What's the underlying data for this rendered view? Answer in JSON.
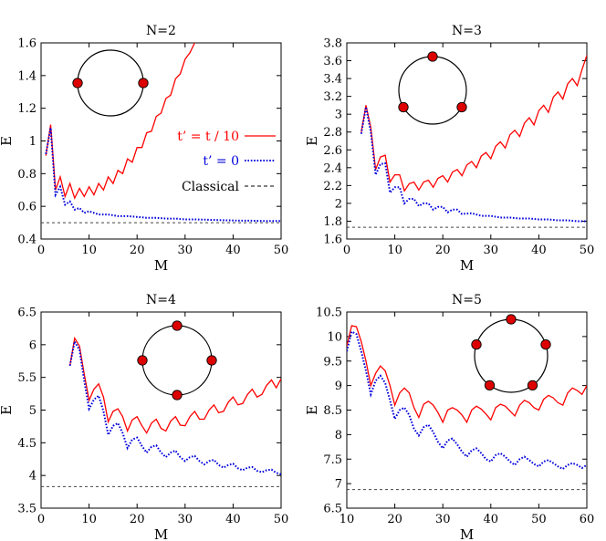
{
  "colors": {
    "hop": "#ff0000",
    "zero": "#0000dd",
    "classical": "#444444",
    "dot": "#dd0000"
  },
  "legend": {
    "entries": [
      {
        "label": "t’ = t / 10",
        "color": "#ff0000",
        "style": "solid"
      },
      {
        "label": "t’ = 0",
        "color": "#0000dd",
        "style": "dotted"
      },
      {
        "label": "Classical",
        "color": "#000000",
        "style": "dashed"
      }
    ]
  },
  "chart_data": [
    {
      "type": "line",
      "title": "N=2",
      "xlabel": "M",
      "ylabel": "E",
      "xlim": [
        0,
        50
      ],
      "ylim": [
        0.4,
        1.6
      ],
      "xticks": [
        "0",
        "10",
        "20",
        "30",
        "40",
        "50"
      ],
      "yticks": [
        "0.4",
        "0.6",
        "0.8",
        "1",
        "1.2",
        "1.4",
        "1.6"
      ],
      "xtick_values": [
        0,
        10,
        20,
        30,
        40,
        50
      ],
      "ytick_values": [
        0.4,
        0.6,
        0.8,
        1.0,
        1.2,
        1.4,
        1.6
      ],
      "n_particles": 2,
      "series": [
        {
          "key": "hop",
          "x": [
            1,
            2,
            3,
            4,
            5,
            6,
            7,
            8,
            9,
            10,
            11,
            12,
            13,
            14,
            15,
            16,
            17,
            18,
            19,
            20,
            21,
            22,
            23,
            24,
            25,
            26,
            27,
            28,
            29,
            30,
            31,
            32
          ],
          "y": [
            0.91,
            1.1,
            0.7,
            0.78,
            0.66,
            0.74,
            0.65,
            0.71,
            0.66,
            0.72,
            0.67,
            0.74,
            0.7,
            0.78,
            0.74,
            0.82,
            0.8,
            0.89,
            0.87,
            0.96,
            0.96,
            1.05,
            1.06,
            1.15,
            1.17,
            1.26,
            1.28,
            1.38,
            1.41,
            1.5,
            1.54,
            1.6
          ]
        },
        {
          "key": "zero",
          "x": [
            1,
            2,
            3,
            4,
            5,
            6,
            7,
            8,
            9,
            10,
            12,
            14,
            16,
            18,
            20,
            22,
            24,
            26,
            28,
            30,
            32,
            35,
            38,
            41,
            44,
            47,
            50
          ],
          "y": [
            0.92,
            1.08,
            0.67,
            0.72,
            0.61,
            0.63,
            0.58,
            0.59,
            0.56,
            0.57,
            0.55,
            0.55,
            0.54,
            0.54,
            0.535,
            0.53,
            0.53,
            0.525,
            0.525,
            0.52,
            0.52,
            0.518,
            0.515,
            0.513,
            0.512,
            0.51,
            0.51
          ]
        },
        {
          "key": "classical",
          "x": [
            0,
            50
          ],
          "y": [
            0.5,
            0.5
          ]
        }
      ]
    },
    {
      "type": "line",
      "title": "N=3",
      "xlabel": "M",
      "ylabel": "E",
      "xlim": [
        0,
        50
      ],
      "ylim": [
        1.6,
        3.8
      ],
      "xticks": [
        "0",
        "10",
        "20",
        "30",
        "40",
        "50"
      ],
      "yticks": [
        "1.6",
        "1.8",
        "2",
        "2.2",
        "2.4",
        "2.6",
        "2.8",
        "3",
        "3.2",
        "3.4",
        "3.6",
        "3.8"
      ],
      "xtick_values": [
        0,
        10,
        20,
        30,
        40,
        50
      ],
      "ytick_values": [
        1.6,
        1.8,
        2.0,
        2.2,
        2.4,
        2.6,
        2.8,
        3.0,
        3.2,
        3.4,
        3.6,
        3.8
      ],
      "n_particles": 3,
      "series": [
        {
          "key": "hop",
          "x": [
            3,
            4,
            5,
            6,
            7,
            8,
            9,
            10,
            11,
            12,
            13,
            14,
            15,
            16,
            17,
            18,
            19,
            20,
            21,
            22,
            23,
            24,
            25,
            26,
            27,
            28,
            29,
            30,
            31,
            32,
            33,
            34,
            35,
            36,
            37,
            38,
            39,
            40,
            41,
            42,
            43,
            44,
            45,
            46,
            47,
            48,
            49,
            50
          ],
          "y": [
            2.8,
            3.1,
            2.85,
            2.38,
            2.52,
            2.54,
            2.24,
            2.32,
            2.32,
            2.14,
            2.22,
            2.24,
            2.15,
            2.24,
            2.26,
            2.18,
            2.28,
            2.31,
            2.24,
            2.35,
            2.38,
            2.31,
            2.43,
            2.47,
            2.4,
            2.53,
            2.57,
            2.5,
            2.64,
            2.69,
            2.62,
            2.77,
            2.82,
            2.75,
            2.9,
            2.96,
            2.88,
            3.04,
            3.1,
            3.02,
            3.19,
            3.25,
            3.17,
            3.34,
            3.4,
            3.32,
            3.5,
            3.66
          ]
        },
        {
          "key": "zero",
          "x": [
            3,
            4,
            5,
            6,
            7,
            8,
            9,
            10,
            11,
            12,
            13,
            14,
            15,
            16,
            17,
            18,
            19,
            20,
            21,
            22,
            23,
            24,
            26,
            28,
            30,
            32,
            34,
            36,
            38,
            40,
            42,
            44,
            46,
            48,
            50
          ],
          "y": [
            2.78,
            3.08,
            2.8,
            2.32,
            2.44,
            2.45,
            2.12,
            2.18,
            2.18,
            2.0,
            2.05,
            2.05,
            1.97,
            2.0,
            2.0,
            1.93,
            1.96,
            1.96,
            1.9,
            1.93,
            1.93,
            1.88,
            1.89,
            1.86,
            1.86,
            1.84,
            1.84,
            1.83,
            1.83,
            1.82,
            1.82,
            1.81,
            1.81,
            1.8,
            1.8
          ]
        },
        {
          "key": "classical",
          "x": [
            0,
            50
          ],
          "y": [
            1.732,
            1.732
          ]
        }
      ]
    },
    {
      "type": "line",
      "title": "N=4",
      "xlabel": "M",
      "ylabel": "E",
      "xlim": [
        0,
        50
      ],
      "ylim": [
        3.5,
        6.5
      ],
      "xticks": [
        "0",
        "10",
        "20",
        "30",
        "40",
        "50"
      ],
      "yticks": [
        "3.5",
        "4",
        "4.5",
        "5",
        "5.5",
        "6",
        "6.5"
      ],
      "xtick_values": [
        0,
        10,
        20,
        30,
        40,
        50
      ],
      "ytick_values": [
        3.5,
        4.0,
        4.5,
        5.0,
        5.5,
        6.0,
        6.5
      ],
      "n_particles": 4,
      "series": [
        {
          "key": "hop",
          "x": [
            6,
            7,
            8,
            9,
            10,
            11,
            12,
            13,
            14,
            15,
            16,
            17,
            18,
            19,
            20,
            21,
            22,
            23,
            24,
            25,
            26,
            27,
            28,
            29,
            30,
            31,
            32,
            33,
            34,
            35,
            36,
            37,
            38,
            39,
            40,
            41,
            42,
            43,
            44,
            45,
            46,
            47,
            48,
            49,
            50
          ],
          "y": [
            5.68,
            6.1,
            5.98,
            5.55,
            5.15,
            5.32,
            5.4,
            5.2,
            4.82,
            4.98,
            5.02,
            4.9,
            4.68,
            4.85,
            4.9,
            4.76,
            4.65,
            4.8,
            4.86,
            4.72,
            4.68,
            4.83,
            4.9,
            4.77,
            4.76,
            4.9,
            4.98,
            4.86,
            4.86,
            5.0,
            5.08,
            4.96,
            4.98,
            5.12,
            5.2,
            5.08,
            5.1,
            5.24,
            5.32,
            5.2,
            5.24,
            5.38,
            5.46,
            5.34,
            5.48
          ]
        },
        {
          "key": "zero",
          "x": [
            6,
            7,
            8,
            9,
            10,
            11,
            12,
            13,
            14,
            15,
            16,
            17,
            18,
            19,
            20,
            21,
            22,
            23,
            24,
            25,
            26,
            27,
            28,
            29,
            30,
            31,
            32,
            33,
            34,
            35,
            36,
            37,
            38,
            39,
            40,
            41,
            42,
            43,
            44,
            45,
            46,
            47,
            48,
            49,
            50
          ],
          "y": [
            5.68,
            6.05,
            5.92,
            5.45,
            5.02,
            5.16,
            5.22,
            4.98,
            4.62,
            4.76,
            4.8,
            4.65,
            4.42,
            4.55,
            4.58,
            4.45,
            4.35,
            4.44,
            4.46,
            4.35,
            4.28,
            4.35,
            4.38,
            4.28,
            4.22,
            4.28,
            4.3,
            4.22,
            4.17,
            4.22,
            4.24,
            4.16,
            4.12,
            4.16,
            4.18,
            4.11,
            4.08,
            4.12,
            4.13,
            4.07,
            4.05,
            4.08,
            4.09,
            4.04,
            4.02
          ]
        },
        {
          "key": "classical",
          "x": [
            0,
            50
          ],
          "y": [
            3.83,
            3.83
          ]
        }
      ]
    },
    {
      "type": "line",
      "title": "N=5",
      "xlabel": "M",
      "ylabel": "E",
      "xlim": [
        10,
        60
      ],
      "ylim": [
        6.5,
        10.5
      ],
      "xticks": [
        "10",
        "20",
        "30",
        "40",
        "50",
        "60"
      ],
      "yticks": [
        "6.5",
        "7",
        "7.5",
        "8",
        "8.5",
        "9",
        "9.5",
        "10",
        "10.5"
      ],
      "xtick_values": [
        10,
        20,
        30,
        40,
        50,
        60
      ],
      "ytick_values": [
        6.5,
        7.0,
        7.5,
        8.0,
        8.5,
        9.0,
        9.5,
        10.0,
        10.5
      ],
      "n_particles": 5,
      "series": [
        {
          "key": "hop",
          "x": [
            10,
            11,
            12,
            13,
            14,
            15,
            16,
            17,
            18,
            19,
            20,
            21,
            22,
            23,
            24,
            25,
            26,
            27,
            28,
            29,
            30,
            31,
            32,
            33,
            34,
            35,
            36,
            37,
            38,
            39,
            40,
            41,
            42,
            43,
            44,
            45,
            46,
            47,
            48,
            49,
            50,
            51,
            52,
            53,
            54,
            55,
            56,
            57,
            58,
            59,
            60
          ],
          "y": [
            9.8,
            10.22,
            10.2,
            9.9,
            9.5,
            9.0,
            9.25,
            9.4,
            9.3,
            9.0,
            8.6,
            8.85,
            8.95,
            8.85,
            8.55,
            8.35,
            8.62,
            8.68,
            8.6,
            8.45,
            8.25,
            8.5,
            8.55,
            8.5,
            8.4,
            8.25,
            8.5,
            8.58,
            8.52,
            8.42,
            8.3,
            8.55,
            8.62,
            8.58,
            8.48,
            8.38,
            8.6,
            8.7,
            8.65,
            8.55,
            8.5,
            8.72,
            8.8,
            8.75,
            8.65,
            8.6,
            8.85,
            8.95,
            8.9,
            8.82,
            9.0
          ]
        },
        {
          "key": "zero",
          "x": [
            10,
            11,
            12,
            13,
            14,
            15,
            16,
            17,
            18,
            19,
            20,
            21,
            22,
            23,
            24,
            25,
            26,
            27,
            28,
            29,
            30,
            31,
            32,
            33,
            34,
            35,
            36,
            37,
            38,
            39,
            40,
            41,
            42,
            43,
            44,
            45,
            46,
            47,
            48,
            49,
            50,
            51,
            52,
            53,
            54,
            55,
            56,
            57,
            58,
            59,
            60
          ],
          "y": [
            9.7,
            10.1,
            10.05,
            9.7,
            9.3,
            8.82,
            9.1,
            9.2,
            9.05,
            8.7,
            8.32,
            8.5,
            8.55,
            8.4,
            8.12,
            7.98,
            8.15,
            8.2,
            8.05,
            7.85,
            7.72,
            7.88,
            7.92,
            7.8,
            7.65,
            7.55,
            7.68,
            7.72,
            7.62,
            7.5,
            7.45,
            7.58,
            7.62,
            7.55,
            7.45,
            7.38,
            7.5,
            7.55,
            7.48,
            7.4,
            7.35,
            7.45,
            7.48,
            7.42,
            7.35,
            7.3,
            7.38,
            7.42,
            7.38,
            7.32,
            7.38
          ]
        },
        {
          "key": "classical",
          "x": [
            10,
            60
          ],
          "y": [
            6.88,
            6.88
          ]
        }
      ]
    }
  ]
}
